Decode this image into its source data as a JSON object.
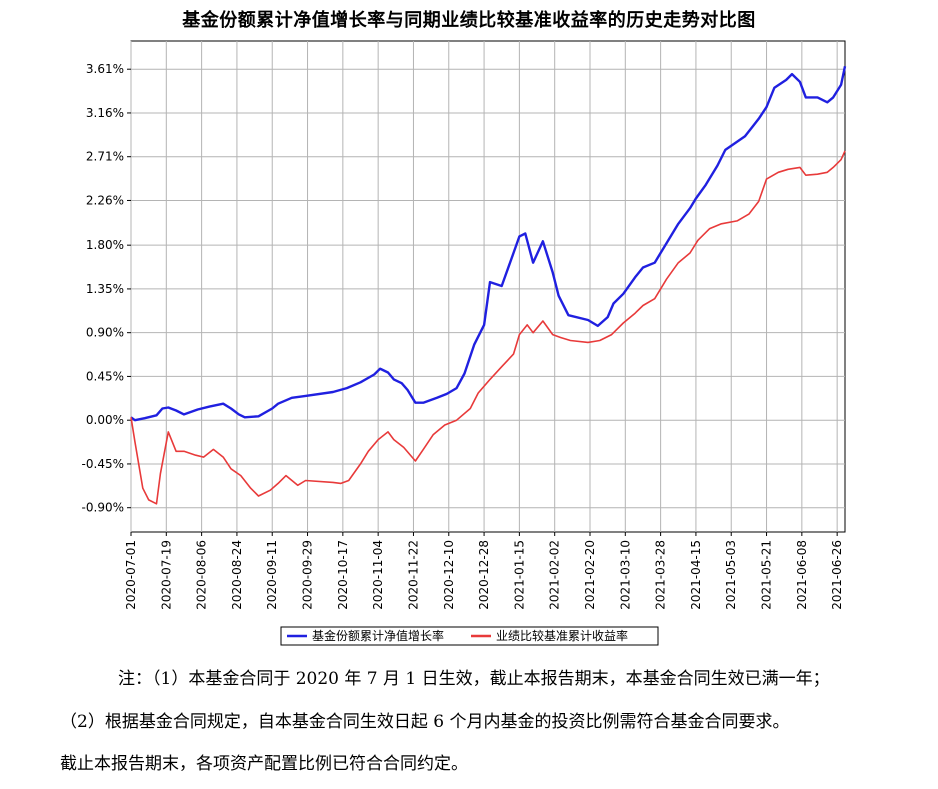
{
  "chart_data": {
    "type": "line",
    "title": "基金份额累计净值增长率与同期业绩比较基准收益率的历史走势对比图",
    "ylim": [
      -1.15,
      3.9
    ],
    "y_ticks": [
      "3.61%",
      "3.16%",
      "2.71%",
      "2.26%",
      "1.80%",
      "1.35%",
      "0.90%",
      "0.45%",
      "0.00%",
      "-0.45%",
      "-0.90%"
    ],
    "y_tick_values": [
      3.61,
      3.16,
      2.71,
      2.26,
      1.8,
      1.35,
      0.9,
      0.45,
      0.0,
      -0.45,
      -0.9
    ],
    "x_ticks": [
      "2020-07-01",
      "2020-07-19",
      "2020-08-06",
      "2020-08-24",
      "2020-09-11",
      "2020-09-29",
      "2020-10-17",
      "2020-11-04",
      "2020-11-22",
      "2020-12-10",
      "2020-12-28",
      "2021-01-15",
      "2021-02-02",
      "2021-02-20",
      "2021-03-10",
      "2021-03-28",
      "2021-04-15",
      "2021-05-03",
      "2021-05-21",
      "2021-06-08",
      "2021-06-26"
    ],
    "x_range": [
      "2020-07-01",
      "2021-06-30"
    ],
    "grid": true,
    "legend_position": "bottom",
    "series": [
      {
        "name": "基金份额累计净值增长率",
        "color": "#2020e0",
        "x": [
          "2020-07-01",
          "2020-07-03",
          "2020-07-08",
          "2020-07-14",
          "2020-07-17",
          "2020-07-20",
          "2020-07-24",
          "2020-07-28",
          "2020-08-04",
          "2020-08-10",
          "2020-08-17",
          "2020-08-21",
          "2020-08-25",
          "2020-08-28",
          "2020-09-04",
          "2020-09-11",
          "2020-09-14",
          "2020-09-21",
          "2020-09-28",
          "2020-10-12",
          "2020-10-19",
          "2020-10-26",
          "2020-11-02",
          "2020-11-05",
          "2020-11-09",
          "2020-11-12",
          "2020-11-16",
          "2020-11-19",
          "2020-11-23",
          "2020-11-27",
          "2020-12-04",
          "2020-12-09",
          "2020-12-14",
          "2020-12-18",
          "2020-12-23",
          "2020-12-28",
          "2020-12-31",
          "2021-01-06",
          "2021-01-12",
          "2021-01-15",
          "2021-01-18",
          "2021-01-22",
          "2021-01-27",
          "2021-02-01",
          "2021-02-04",
          "2021-02-09",
          "2021-02-19",
          "2021-02-24",
          "2021-03-01",
          "2021-03-04",
          "2021-03-09",
          "2021-03-15",
          "2021-03-19",
          "2021-03-25",
          "2021-03-31",
          "2021-04-06",
          "2021-04-12",
          "2021-04-15",
          "2021-04-20",
          "2021-04-26",
          "2021-04-30",
          "2021-05-10",
          "2021-05-17",
          "2021-05-21",
          "2021-05-25",
          "2021-05-31",
          "2021-06-03",
          "2021-06-07",
          "2021-06-10",
          "2021-06-16",
          "2021-06-21",
          "2021-06-24",
          "2021-06-28",
          "2021-06-30"
        ],
        "values": [
          0.03,
          0.0,
          0.02,
          0.05,
          0.12,
          0.13,
          0.1,
          0.06,
          0.11,
          0.14,
          0.17,
          0.12,
          0.06,
          0.03,
          0.04,
          0.12,
          0.17,
          0.23,
          0.25,
          0.29,
          0.33,
          0.39,
          0.47,
          0.53,
          0.49,
          0.42,
          0.38,
          0.31,
          0.18,
          0.18,
          0.23,
          0.27,
          0.33,
          0.48,
          0.78,
          0.98,
          1.42,
          1.38,
          1.72,
          1.89,
          1.92,
          1.62,
          1.84,
          1.52,
          1.28,
          1.08,
          1.03,
          0.97,
          1.06,
          1.2,
          1.3,
          1.47,
          1.57,
          1.62,
          1.82,
          2.02,
          2.18,
          2.28,
          2.42,
          2.62,
          2.78,
          2.92,
          3.1,
          3.22,
          3.42,
          3.5,
          3.56,
          3.48,
          3.32,
          3.32,
          3.27,
          3.32,
          3.45,
          3.64
        ]
      },
      {
        "name": "业绩比较基准累计收益率",
        "color": "#e83a3a",
        "x": [
          "2020-07-01",
          "2020-07-03",
          "2020-07-07",
          "2020-07-10",
          "2020-07-14",
          "2020-07-16",
          "2020-07-20",
          "2020-07-24",
          "2020-07-28",
          "2020-08-03",
          "2020-08-07",
          "2020-08-12",
          "2020-08-17",
          "2020-08-21",
          "2020-08-26",
          "2020-08-31",
          "2020-09-04",
          "2020-09-10",
          "2020-09-14",
          "2020-09-18",
          "2020-09-24",
          "2020-09-28",
          "2020-10-12",
          "2020-10-16",
          "2020-10-20",
          "2020-10-26",
          "2020-10-30",
          "2020-11-04",
          "2020-11-09",
          "2020-11-12",
          "2020-11-17",
          "2020-11-23",
          "2020-11-27",
          "2020-12-02",
          "2020-12-08",
          "2020-12-14",
          "2020-12-21",
          "2020-12-25",
          "2020-12-31",
          "2021-01-06",
          "2021-01-12",
          "2021-01-15",
          "2021-01-19",
          "2021-01-22",
          "2021-01-27",
          "2021-02-01",
          "2021-02-05",
          "2021-02-10",
          "2021-02-19",
          "2021-02-25",
          "2021-03-03",
          "2021-03-09",
          "2021-03-15",
          "2021-03-19",
          "2021-03-25",
          "2021-03-31",
          "2021-04-06",
          "2021-04-12",
          "2021-04-16",
          "2021-04-22",
          "2021-04-28",
          "2021-05-06",
          "2021-05-12",
          "2021-05-17",
          "2021-05-21",
          "2021-05-27",
          "2021-06-01",
          "2021-06-07",
          "2021-06-10",
          "2021-06-16",
          "2021-06-21",
          "2021-06-24",
          "2021-06-28",
          "2021-06-30"
        ],
        "values": [
          0.03,
          -0.22,
          -0.7,
          -0.82,
          -0.86,
          -0.55,
          -0.12,
          -0.32,
          -0.32,
          -0.36,
          -0.38,
          -0.3,
          -0.38,
          -0.5,
          -0.57,
          -0.7,
          -0.78,
          -0.72,
          -0.65,
          -0.57,
          -0.67,
          -0.62,
          -0.64,
          -0.65,
          -0.62,
          -0.45,
          -0.32,
          -0.2,
          -0.12,
          -0.2,
          -0.28,
          -0.42,
          -0.3,
          -0.15,
          -0.05,
          0.0,
          0.12,
          0.28,
          0.42,
          0.55,
          0.68,
          0.88,
          0.98,
          0.9,
          1.02,
          0.88,
          0.85,
          0.82,
          0.8,
          0.82,
          0.88,
          1.0,
          1.1,
          1.18,
          1.25,
          1.45,
          1.62,
          1.72,
          1.85,
          1.97,
          2.02,
          2.05,
          2.12,
          2.25,
          2.48,
          2.55,
          2.58,
          2.6,
          2.52,
          2.53,
          2.55,
          2.6,
          2.68,
          2.77
        ]
      }
    ]
  },
  "notes": {
    "line1": "注：（1）本基金合同于 2020 年 7 月 1 日生效，截止本报告期末，本基金合同生效已满一年；",
    "line2": "（2）根据基金合同规定，自本基金合同生效日起 6 个月内基金的投资比例需符合基金合同要求。",
    "line3": "截止本报告期末，各项资产配置比例已符合合同约定。"
  }
}
